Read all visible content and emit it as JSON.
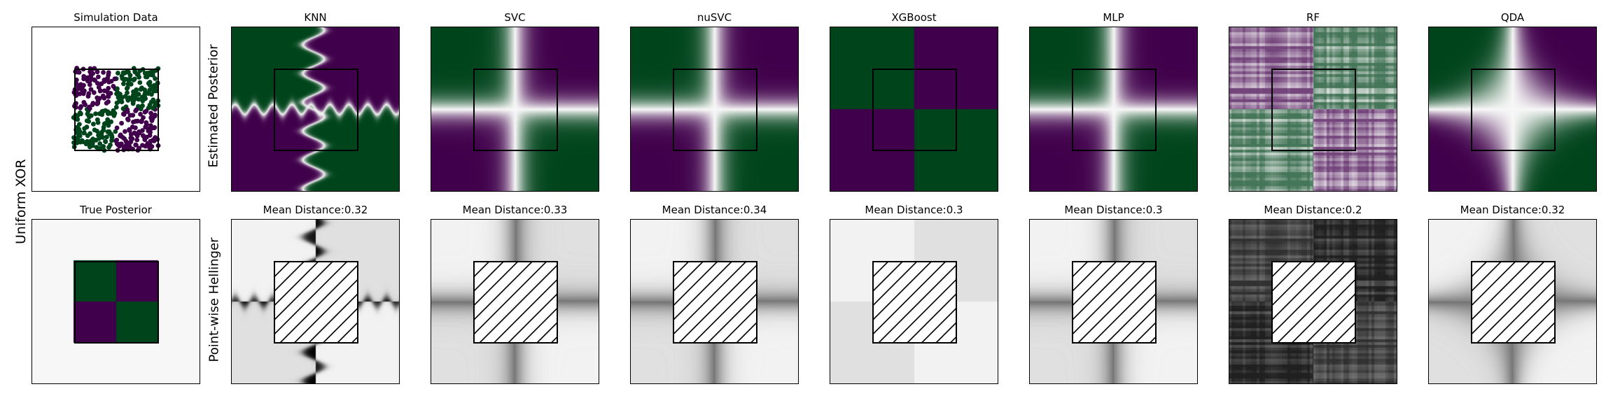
{
  "figure": {
    "row_label": "Uniform XOR",
    "row1_ylabel": "Estimated Posterior",
    "row2_ylabel": "Point-wise Hellinger"
  },
  "chart_data": [
    {
      "type": "scatter",
      "title": "Simulation Data",
      "panel": "simulation",
      "xlim": [
        -2,
        2
      ],
      "ylim": [
        -2,
        2
      ],
      "classes": [
        {
          "label": "0",
          "color": "#40004b"
        },
        {
          "label": "1",
          "color": "#00441b"
        }
      ]
    },
    {
      "type": "heatmap",
      "title": "True Posterior",
      "panel": "true_posterior"
    },
    {
      "type": "heatmap",
      "title": "KNN",
      "style": "knn",
      "row": "posterior"
    },
    {
      "type": "heatmap",
      "title": "SVC",
      "style": "smooth",
      "row": "posterior"
    },
    {
      "type": "heatmap",
      "title": "nuSVC",
      "style": "smooth",
      "row": "posterior"
    },
    {
      "type": "heatmap",
      "title": "XGBoost",
      "style": "blocky",
      "row": "posterior"
    },
    {
      "type": "heatmap",
      "title": "MLP",
      "style": "smooth",
      "row": "posterior"
    },
    {
      "type": "heatmap",
      "title": "RF",
      "style": "rf",
      "row": "posterior"
    },
    {
      "type": "heatmap",
      "title": "QDA",
      "style": "qda",
      "row": "posterior"
    },
    {
      "type": "heatmap",
      "title": "Mean Distance:0.32",
      "model": "KNN",
      "mean_distance": 0.32,
      "row": "hellinger"
    },
    {
      "type": "heatmap",
      "title": "Mean Distance:0.33",
      "model": "SVC",
      "mean_distance": 0.33,
      "row": "hellinger"
    },
    {
      "type": "heatmap",
      "title": "Mean Distance:0.34",
      "model": "nuSVC",
      "mean_distance": 0.34,
      "row": "hellinger"
    },
    {
      "type": "heatmap",
      "title": "Mean Distance:0.3",
      "model": "XGBoost",
      "mean_distance": 0.3,
      "row": "hellinger"
    },
    {
      "type": "heatmap",
      "title": "Mean Distance:0.3",
      "model": "MLP",
      "mean_distance": 0.3,
      "row": "hellinger"
    },
    {
      "type": "heatmap",
      "title": "Mean Distance:0.2",
      "model": "RF",
      "mean_distance": 0.2,
      "row": "hellinger"
    },
    {
      "type": "heatmap",
      "title": "Mean Distance:0.32",
      "model": "QDA",
      "mean_distance": 0.32,
      "row": "hellinger"
    }
  ]
}
